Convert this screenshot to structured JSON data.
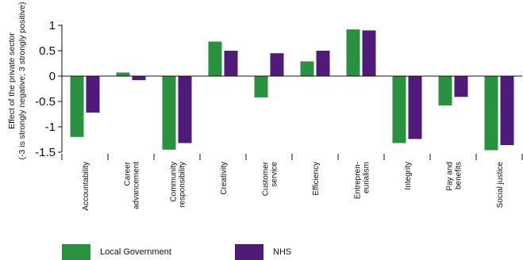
{
  "chart_data": {
    "type": "bar",
    "ylabel_line1": "Effect of the private sector",
    "ylabel_line2": "(-3 is strongly negative; 3 strongly positive)",
    "ylim": [
      -1.5,
      1
    ],
    "yticks": [
      "1",
      "0.5",
      "0",
      "-0.5",
      "-1",
      "-1.5"
    ],
    "ytick_values": [
      1,
      0.5,
      0,
      -0.5,
      -1,
      -1.5
    ],
    "grid": false,
    "legend_position": "bottom",
    "categories": [
      "Accountability",
      "Career advancement",
      "Community responsibility",
      "Creativity",
      "Customer service",
      "Efficiency",
      "Entrepren-eurialism",
      "Integrity",
      "Pay and benefits",
      "Social justice"
    ],
    "category_lines": [
      [
        "Accountability"
      ],
      [
        "Career",
        "advancement"
      ],
      [
        "Community",
        "responsibility"
      ],
      [
        "Creativity"
      ],
      [
        "Customer",
        "service"
      ],
      [
        "Efficiency"
      ],
      [
        "Entrepren-",
        "eurialism"
      ],
      [
        "Integrity"
      ],
      [
        "Pay and",
        "benefits"
      ],
      [
        "Social justice"
      ]
    ],
    "series": [
      {
        "name": "Local Government",
        "color": "#2a9140",
        "values": [
          -1.2,
          0.07,
          -1.45,
          0.68,
          -0.42,
          0.29,
          0.92,
          -1.32,
          -0.58,
          -1.46
        ]
      },
      {
        "name": "NHS",
        "color": "#4f1a78",
        "values": [
          -0.72,
          -0.08,
          -1.32,
          0.5,
          0.45,
          0.5,
          0.9,
          -1.24,
          -0.41,
          -1.36
        ]
      }
    ]
  }
}
